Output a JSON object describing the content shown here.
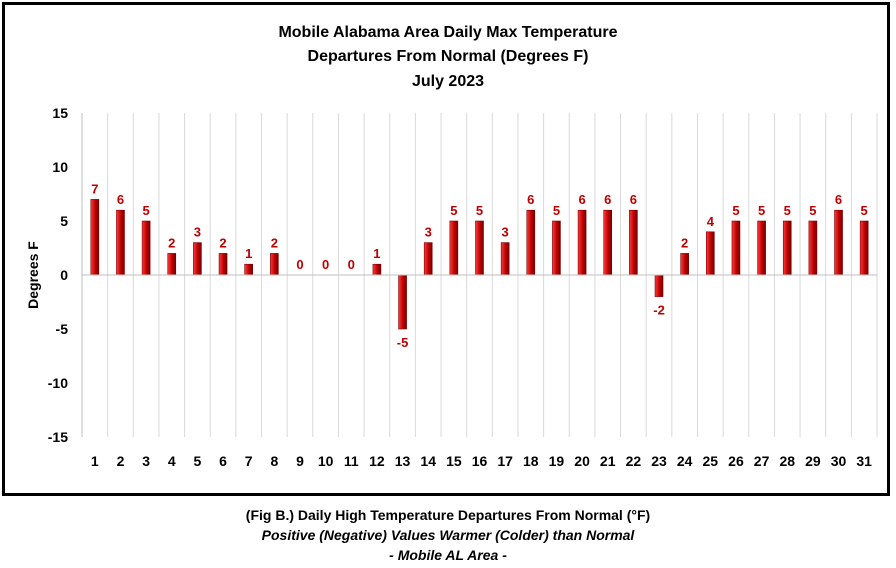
{
  "chart_data": {
    "type": "bar",
    "title": [
      "Mobile Alabama Area Daily Max Temperature",
      "Departures From Normal (Degrees F)",
      "July 2023"
    ],
    "xlabel": "",
    "ylabel": "Degrees F",
    "ylim": [
      -15,
      15
    ],
    "yticks": [
      15,
      10,
      5,
      0,
      -5,
      -10,
      -15
    ],
    "grid": "vertical",
    "legend": "none",
    "categories": [
      "1",
      "2",
      "3",
      "4",
      "5",
      "6",
      "7",
      "8",
      "9",
      "10",
      "11",
      "12",
      "13",
      "14",
      "15",
      "16",
      "17",
      "18",
      "19",
      "20",
      "21",
      "22",
      "23",
      "24",
      "25",
      "26",
      "27",
      "28",
      "29",
      "30",
      "31"
    ],
    "values": [
      7,
      6,
      5,
      2,
      3,
      2,
      1,
      2,
      0,
      0,
      0,
      1,
      -5,
      3,
      5,
      5,
      3,
      6,
      5,
      6,
      6,
      6,
      -2,
      2,
      4,
      5,
      5,
      5,
      5,
      6,
      5
    ],
    "bar_color": "#c00000",
    "label_color": "#c00000"
  },
  "caption": {
    "line1": "(Fig B.) Daily High Temperature Departures From Normal (°F)",
    "line2": "Positive (Negative) Values Warmer (Colder) than Normal",
    "line3": "- Mobile AL Area -"
  }
}
